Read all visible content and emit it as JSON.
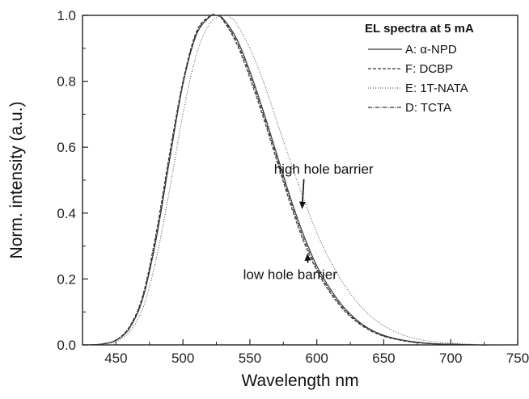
{
  "chart_data": {
    "type": "line",
    "xlabel": "Wavelength nm",
    "ylabel": "Norm. intensity (a.u.)",
    "xlim": [
      425,
      750
    ],
    "ylim": [
      0,
      1.0
    ],
    "xticks": [
      450,
      500,
      550,
      600,
      650,
      700,
      750
    ],
    "yticks": [
      0.0,
      0.2,
      0.4,
      0.6,
      0.8,
      1.0
    ],
    "ytick_labels": [
      "0.0",
      "0.2",
      "0.4",
      "0.6",
      "0.8",
      "1.0"
    ],
    "grid": false,
    "legend": {
      "title": "EL spectra at 5 mA",
      "placement": "top-right"
    },
    "series": [
      {
        "name": "A: α-NPD",
        "style": "solid",
        "x": [
          430,
          440,
          450,
          460,
          470,
          480,
          490,
          500,
          510,
          520,
          525,
          530,
          540,
          550,
          560,
          570,
          580,
          590,
          600,
          610,
          620,
          630,
          640,
          650,
          660,
          670,
          680,
          690,
          700,
          710,
          720,
          730,
          740,
          750
        ],
        "y": [
          0.0,
          0.003,
          0.014,
          0.05,
          0.14,
          0.32,
          0.56,
          0.79,
          0.94,
          0.995,
          1.0,
          0.99,
          0.93,
          0.83,
          0.71,
          0.58,
          0.45,
          0.335,
          0.24,
          0.17,
          0.115,
          0.075,
          0.047,
          0.029,
          0.018,
          0.011,
          0.006,
          0.003,
          0.002,
          0.001,
          0.0,
          0.0,
          0.0,
          0.0
        ]
      },
      {
        "name": "F: DCBP",
        "style": "dashed",
        "x": [
          430,
          440,
          450,
          460,
          470,
          480,
          490,
          500,
          510,
          520,
          525,
          530,
          540,
          550,
          560,
          570,
          580,
          590,
          600,
          610,
          620,
          630,
          640,
          650,
          660,
          670,
          680,
          690,
          700,
          710,
          720,
          730,
          740,
          750
        ],
        "y": [
          0.0,
          0.003,
          0.015,
          0.055,
          0.15,
          0.34,
          0.58,
          0.8,
          0.95,
          0.998,
          1.0,
          0.985,
          0.915,
          0.81,
          0.69,
          0.56,
          0.43,
          0.315,
          0.225,
          0.158,
          0.106,
          0.069,
          0.043,
          0.026,
          0.016,
          0.009,
          0.005,
          0.003,
          0.002,
          0.001,
          0.0,
          0.0,
          0.0,
          0.0
        ]
      },
      {
        "name": "E: 1T-NATA",
        "style": "dotted",
        "x": [
          430,
          440,
          450,
          460,
          470,
          480,
          490,
          500,
          510,
          520,
          530,
          535,
          540,
          550,
          560,
          570,
          580,
          590,
          600,
          610,
          620,
          630,
          640,
          650,
          660,
          670,
          680,
          690,
          700,
          710,
          720,
          730,
          740,
          750
        ],
        "y": [
          0.0,
          0.002,
          0.01,
          0.04,
          0.11,
          0.26,
          0.47,
          0.7,
          0.88,
          0.975,
          1.0,
          0.995,
          0.975,
          0.9,
          0.8,
          0.68,
          0.56,
          0.445,
          0.34,
          0.255,
          0.185,
          0.13,
          0.088,
          0.058,
          0.037,
          0.023,
          0.014,
          0.008,
          0.005,
          0.003,
          0.001,
          0.0,
          0.0,
          0.0
        ]
      },
      {
        "name": "D: TCTA",
        "style": "dashdot",
        "x": [
          430,
          440,
          450,
          460,
          470,
          480,
          490,
          500,
          510,
          520,
          525,
          530,
          540,
          550,
          560,
          570,
          580,
          590,
          600,
          610,
          620,
          630,
          640,
          650,
          660,
          670,
          680,
          690,
          700,
          710,
          720,
          730,
          740,
          750
        ],
        "y": [
          0.0,
          0.003,
          0.014,
          0.052,
          0.145,
          0.33,
          0.57,
          0.795,
          0.945,
          0.996,
          1.0,
          0.988,
          0.922,
          0.82,
          0.7,
          0.57,
          0.44,
          0.325,
          0.232,
          0.163,
          0.11,
          0.072,
          0.045,
          0.027,
          0.017,
          0.01,
          0.005,
          0.003,
          0.002,
          0.001,
          0.0,
          0.0,
          0.0,
          0.0
        ]
      }
    ],
    "annotations": [
      {
        "text": "high hole barrier",
        "text_x": 568,
        "text_y": 0.52,
        "arrow_to_x": 589,
        "arrow_to_y": 0.415
      },
      {
        "text": "low hole barrier",
        "text_x": 545,
        "text_y": 0.2,
        "arrow_to_x": 593,
        "arrow_to_y": 0.275
      }
    ]
  }
}
